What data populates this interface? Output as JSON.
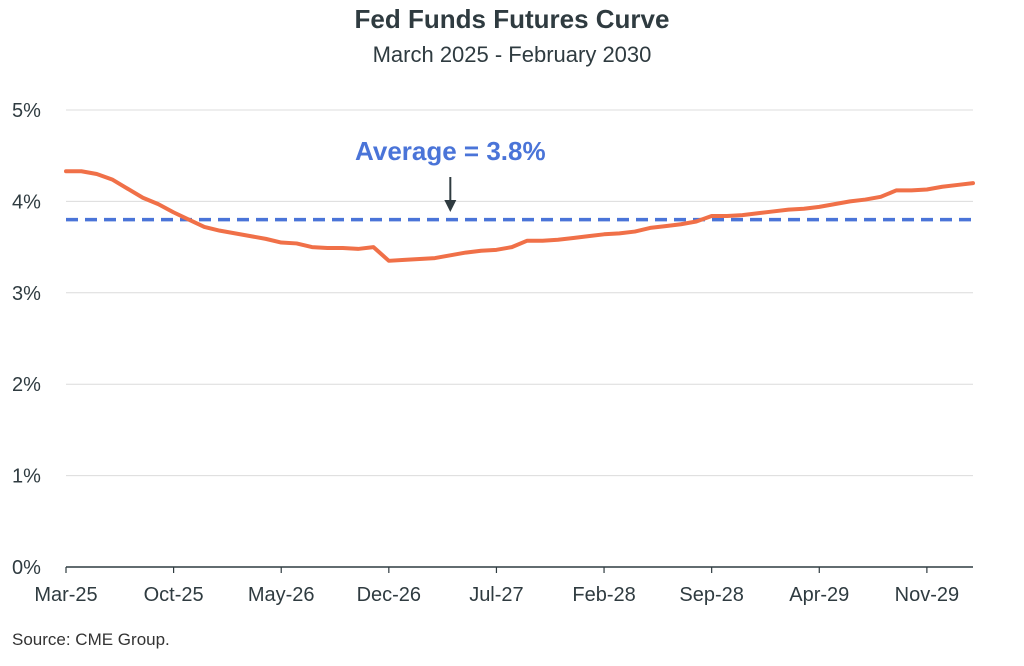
{
  "chart_data": {
    "type": "line",
    "title": "Fed Funds Futures Curve",
    "subtitle": "March 2025 - February 2030",
    "source": "Source: CME Group.",
    "xlabel": "",
    "ylabel": "",
    "ylim": [
      0,
      5
    ],
    "y_ticks": [
      0,
      1,
      2,
      3,
      4,
      5
    ],
    "y_tick_labels": [
      "0%",
      "1%",
      "2%",
      "3%",
      "4%",
      "5%"
    ],
    "x_tick_labels": [
      "Mar-25",
      "Oct-25",
      "May-26",
      "Dec-26",
      "Jul-27",
      "Feb-28",
      "Sep-28",
      "Apr-29",
      "Nov-29"
    ],
    "x_tick_dates": [
      "2025-03",
      "2025-10",
      "2026-05",
      "2026-12",
      "2027-07",
      "2028-02",
      "2028-09",
      "2029-04",
      "2029-11"
    ],
    "grid": true,
    "colors": {
      "series": "#f07048",
      "average": "#4a74d8",
      "grid": "#dcdcdc",
      "axis": "#2f3b40"
    },
    "series": [
      {
        "x": [
          "2025-03",
          "2025-04",
          "2025-05",
          "2025-06",
          "2025-07",
          "2025-08",
          "2025-09",
          "2025-10",
          "2025-11",
          "2025-12",
          "2026-01",
          "2026-02",
          "2026-03",
          "2026-04",
          "2026-05",
          "2026-06",
          "2026-07",
          "2026-08",
          "2026-09",
          "2026-10",
          "2026-11",
          "2026-12",
          "2027-01",
          "2027-02",
          "2027-03",
          "2027-04",
          "2027-05",
          "2027-06",
          "2027-07",
          "2027-08",
          "2027-09",
          "2027-10",
          "2027-11",
          "2027-12",
          "2028-01",
          "2028-02",
          "2028-03",
          "2028-04",
          "2028-05",
          "2028-06",
          "2028-07",
          "2028-08",
          "2028-09",
          "2028-10",
          "2028-11",
          "2028-12",
          "2029-01",
          "2029-02",
          "2029-03",
          "2029-04",
          "2029-05",
          "2029-06",
          "2029-07",
          "2029-08",
          "2029-09",
          "2029-10",
          "2029-11",
          "2029-12",
          "2030-01",
          "2030-02"
        ],
        "values": [
          4.33,
          4.33,
          4.3,
          4.24,
          4.14,
          4.04,
          3.97,
          3.88,
          3.8,
          3.72,
          3.68,
          3.65,
          3.62,
          3.59,
          3.55,
          3.54,
          3.5,
          3.49,
          3.49,
          3.48,
          3.5,
          3.35,
          3.36,
          3.37,
          3.38,
          3.41,
          3.44,
          3.46,
          3.47,
          3.5,
          3.57,
          3.57,
          3.58,
          3.6,
          3.62,
          3.64,
          3.65,
          3.67,
          3.71,
          3.73,
          3.75,
          3.78,
          3.84,
          3.84,
          3.85,
          3.87,
          3.89,
          3.91,
          3.92,
          3.94,
          3.97,
          4.0,
          4.02,
          4.05,
          4.12,
          4.12,
          4.13,
          4.16,
          4.18,
          4.2
        ]
      }
    ],
    "average": {
      "value": 3.8,
      "label": "Average = 3.8%",
      "arrow_at": "2027-04"
    }
  }
}
